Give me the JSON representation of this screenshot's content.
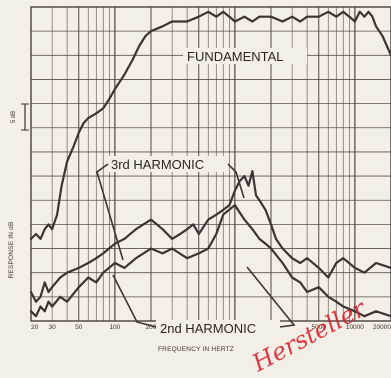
{
  "chart_data": {
    "type": "line",
    "title": "",
    "xlabel": "FREQUENCY IN HERTZ",
    "ylabel": "RESPONSE IN dB",
    "x_scale": "log",
    "xlim": [
      20,
      20000
    ],
    "x_ticks": [
      20,
      30,
      50,
      100,
      200,
      500,
      1000,
      2000,
      5000,
      10000,
      20000
    ],
    "x_tick_labels": [
      "20",
      "30",
      "50",
      "100",
      "200",
      "500",
      "1000",
      "2000",
      "5000",
      "10000",
      "20000"
    ],
    "ylim": [
      0,
      65
    ],
    "scale_marker": "5 dB",
    "grid": true,
    "series": [
      {
        "name": "FUNDAMENTAL",
        "x": [
          20,
          22,
          24,
          26,
          28,
          30,
          33,
          36,
          40,
          45,
          50,
          55,
          60,
          70,
          80,
          90,
          100,
          120,
          140,
          160,
          180,
          200,
          250,
          300,
          350,
          400,
          500,
          600,
          700,
          800,
          900,
          1000,
          1200,
          1400,
          1600,
          2000,
          2500,
          3000,
          3500,
          4000,
          5000,
          6000,
          7000,
          8000,
          9000,
          10000,
          11000,
          12000,
          13000,
          14000,
          15000,
          17000,
          20000
        ],
        "values": [
          17,
          18,
          17,
          19,
          20,
          19,
          22,
          28,
          33,
          36,
          39,
          41,
          42,
          43,
          44,
          46,
          48,
          51,
          54,
          57,
          59,
          60,
          61,
          62,
          62,
          62,
          63,
          64,
          63,
          64,
          63,
          62,
          63,
          62,
          63,
          63,
          62,
          63,
          62,
          63,
          63,
          64,
          63,
          64,
          63,
          62,
          64,
          63,
          64,
          63,
          61,
          59,
          55
        ]
      },
      {
        "name": "3rd HARMONIC",
        "x": [
          20,
          22,
          24,
          26,
          28,
          30,
          35,
          40,
          50,
          60,
          70,
          80,
          100,
          120,
          150,
          200,
          250,
          300,
          350,
          400,
          450,
          500,
          600,
          700,
          800,
          900,
          1000,
          1100,
          1200,
          1300,
          1400,
          1500,
          1600,
          1800,
          2000,
          2200,
          2500,
          3000,
          3500,
          4000,
          5000,
          6000,
          7000,
          8000,
          10000,
          12000,
          15000,
          20000
        ],
        "values": [
          6,
          4,
          5,
          8,
          6,
          7,
          9,
          10,
          11,
          12,
          13,
          14,
          16,
          17,
          19,
          21,
          19,
          17,
          18,
          19,
          20,
          18,
          21,
          22,
          23,
          24,
          27,
          29,
          30,
          28,
          31,
          26,
          25,
          23,
          20,
          17,
          15,
          13,
          12,
          13,
          11,
          9,
          12,
          13,
          11,
          10,
          12,
          11
        ]
      },
      {
        "name": "2nd HARMONIC",
        "x": [
          20,
          22,
          24,
          26,
          28,
          30,
          35,
          40,
          50,
          60,
          70,
          80,
          100,
          120,
          150,
          200,
          250,
          300,
          400,
          500,
          600,
          700,
          800,
          1000,
          1200,
          1400,
          1600,
          1800,
          2000,
          2500,
          3000,
          3500,
          4000,
          5000,
          6000,
          7000,
          8000,
          10000,
          12000,
          15000,
          20000
        ],
        "values": [
          2,
          1,
          3,
          2,
          4,
          3,
          5,
          4,
          7,
          9,
          8,
          10,
          12,
          11,
          13,
          15,
          14,
          15,
          13,
          14,
          15,
          18,
          22,
          24,
          21,
          19,
          17,
          16,
          15,
          12,
          9,
          8,
          6,
          7,
          5,
          4,
          3,
          2,
          1,
          2,
          1
        ]
      }
    ],
    "annotations": [
      "FUNDAMENTAL",
      "3rd HARMONIC",
      "2nd HARMONIC"
    ]
  },
  "watermark": "Hersteller",
  "colors": {
    "background": "#f4efe6",
    "grid": "#4a3f3c",
    "line": "#3b3432",
    "watermark": "#d81a2a"
  }
}
